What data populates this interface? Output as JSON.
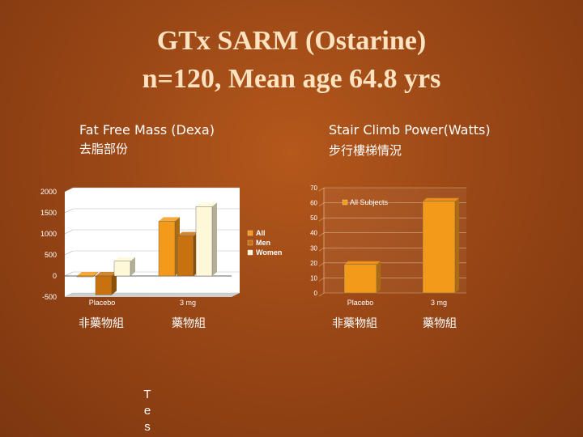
{
  "slide": {
    "title_line1": "GTx SARM (Ostarine)",
    "title_line2": "n=120, Mean age 64.8 yrs",
    "left_heading_en": "Fat Free Mass (Dexa)",
    "left_heading_zh": "去脂部份",
    "right_heading_en": "Stair Climb Power(Watts)",
    "right_heading_zh": "步行樓梯情況",
    "group_labels": [
      "非藥物組",
      "藥物組",
      "非藥物組",
      "藥物組"
    ],
    "vertical_text": [
      "T",
      "e",
      "s"
    ]
  },
  "chart_data": [
    {
      "type": "bar",
      "categories": [
        "Placebo",
        "3 mg"
      ],
      "series": [
        {
          "name": "All",
          "values": [
            -20,
            1300
          ]
        },
        {
          "name": "Men",
          "values": [
            -450,
            950
          ]
        },
        {
          "name": "Women",
          "values": [
            350,
            1650
          ]
        }
      ],
      "yticks": [
        "2000",
        "1500",
        "1000",
        "500",
        "0",
        "-500"
      ],
      "ylim": [
        -500,
        2000
      ],
      "grid": true,
      "legend": "right",
      "colors": {
        "All": "#f49a1b",
        "Men": "#c7720e",
        "Women": "#fff8d8"
      }
    },
    {
      "type": "bar",
      "categories": [
        "Placebo",
        "3 mg"
      ],
      "series": [
        {
          "name": "All Subjects",
          "values": [
            19,
            61
          ]
        }
      ],
      "yticks": [
        "70",
        "60",
        "50",
        "40",
        "30",
        "20",
        "10",
        "0"
      ],
      "ylim": [
        0,
        70
      ],
      "grid": true,
      "legend": "top-left",
      "colors": {
        "All Subjects": "#f49a1b"
      }
    }
  ]
}
